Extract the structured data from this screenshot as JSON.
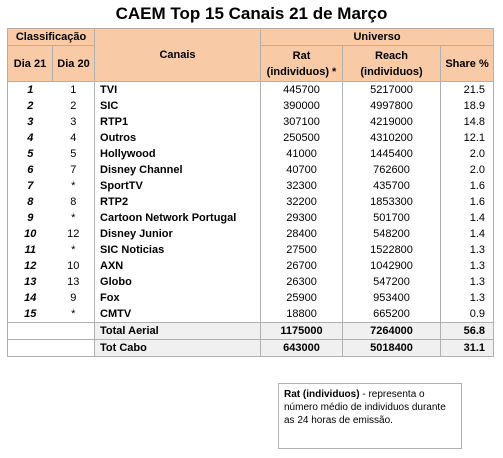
{
  "title": "CAEM Top 15 Canais 21 de Março",
  "headers": {
    "classificacao": "Classificação",
    "dia21": "Dia 21",
    "dia20": "Dia 20",
    "canais": "Canais",
    "universo": "Universo",
    "rat": "Rat (individuos) *",
    "reach": "Reach (individuos)",
    "share": "Share %"
  },
  "rows": [
    {
      "d21": "1",
      "d20": "1",
      "canal": "TVI",
      "rat": "445700",
      "reach": "5217000",
      "share": "21.5"
    },
    {
      "d21": "2",
      "d20": "2",
      "canal": "SIC",
      "rat": "390000",
      "reach": "4997800",
      "share": "18.9"
    },
    {
      "d21": "3",
      "d20": "3",
      "canal": "RTP1",
      "rat": "307100",
      "reach": "4219000",
      "share": "14.8"
    },
    {
      "d21": "4",
      "d20": "4",
      "canal": "Outros",
      "rat": "250500",
      "reach": "4310200",
      "share": "12.1"
    },
    {
      "d21": "5",
      "d20": "5",
      "canal": "Hollywood",
      "rat": "41000",
      "reach": "1445400",
      "share": "2.0"
    },
    {
      "d21": "6",
      "d20": "7",
      "canal": "Disney Channel",
      "rat": "40700",
      "reach": "762600",
      "share": "2.0"
    },
    {
      "d21": "7",
      "d20": "*",
      "canal": "SportTV",
      "rat": "32300",
      "reach": "435700",
      "share": "1.6"
    },
    {
      "d21": "8",
      "d20": "8",
      "canal": "RTP2",
      "rat": "32200",
      "reach": "1853300",
      "share": "1.6"
    },
    {
      "d21": "9",
      "d20": "*",
      "canal": "Cartoon Network Portugal",
      "rat": "29300",
      "reach": "501700",
      "share": "1.4"
    },
    {
      "d21": "10",
      "d20": "12",
      "canal": "Disney Junior",
      "rat": "28400",
      "reach": "548200",
      "share": "1.4"
    },
    {
      "d21": "11",
      "d20": "*",
      "canal": "SIC Noticias",
      "rat": "27500",
      "reach": "1522800",
      "share": "1.3"
    },
    {
      "d21": "12",
      "d20": "10",
      "canal": "AXN",
      "rat": "26700",
      "reach": "1042900",
      "share": "1.3"
    },
    {
      "d21": "13",
      "d20": "13",
      "canal": "Globo",
      "rat": "26300",
      "reach": "547200",
      "share": "1.3"
    },
    {
      "d21": "14",
      "d20": "9",
      "canal": "Fox",
      "rat": "25900",
      "reach": "953400",
      "share": "1.3"
    },
    {
      "d21": "15",
      "d20": "*",
      "canal": "CMTV",
      "rat": "18800",
      "reach": "665200",
      "share": "0.9"
    }
  ],
  "totals": [
    {
      "canal": "Total Aerial",
      "rat": "1175000",
      "reach": "7264000",
      "share": "56.8"
    },
    {
      "canal": "Tot Cabo",
      "rat": "643000",
      "reach": "5018400",
      "share": "31.1"
    }
  ],
  "note": {
    "bold": "Rat (individuos)",
    "text": " - representa o número médio de individuos durante as 24 horas de emissão."
  }
}
